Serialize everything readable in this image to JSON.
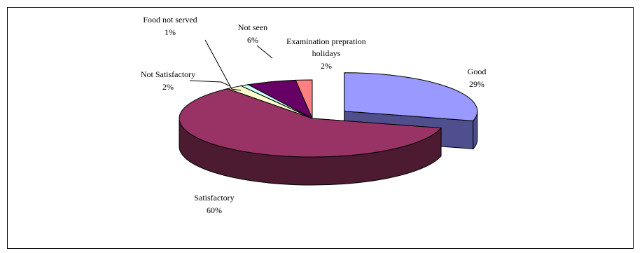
{
  "chart_data": {
    "type": "pie",
    "title": "",
    "legend": "none",
    "slices": [
      {
        "name": "Good",
        "value": 29,
        "label": "29%",
        "top": "#9999ff",
        "side": "#4f4f8e",
        "exploded": true
      },
      {
        "name": "Satisfactory",
        "value": 60,
        "label": "60%",
        "top": "#993366",
        "side": "#4c1a31",
        "exploded": false
      },
      {
        "name": "Not Satisfactory",
        "value": 2,
        "label": "2%",
        "top": "#ffffcc",
        "side": "#7a7a5e",
        "exploded": false
      },
      {
        "name": "Food not served",
        "value": 1,
        "label": "1%",
        "top": "#ccffff",
        "side": "#5a7a7a",
        "exploded": false
      },
      {
        "name": "Not seen",
        "value": 6,
        "label": "6%",
        "top": "#660066",
        "side": "#330033",
        "exploded": false
      },
      {
        "name": "Examination prepration holidays",
        "name_lines": [
          "Examination prepration",
          "holidays"
        ],
        "value": 2,
        "label": "2%",
        "top": "#ff8080",
        "side": "#7f3a3a",
        "exploded": false
      }
    ]
  }
}
